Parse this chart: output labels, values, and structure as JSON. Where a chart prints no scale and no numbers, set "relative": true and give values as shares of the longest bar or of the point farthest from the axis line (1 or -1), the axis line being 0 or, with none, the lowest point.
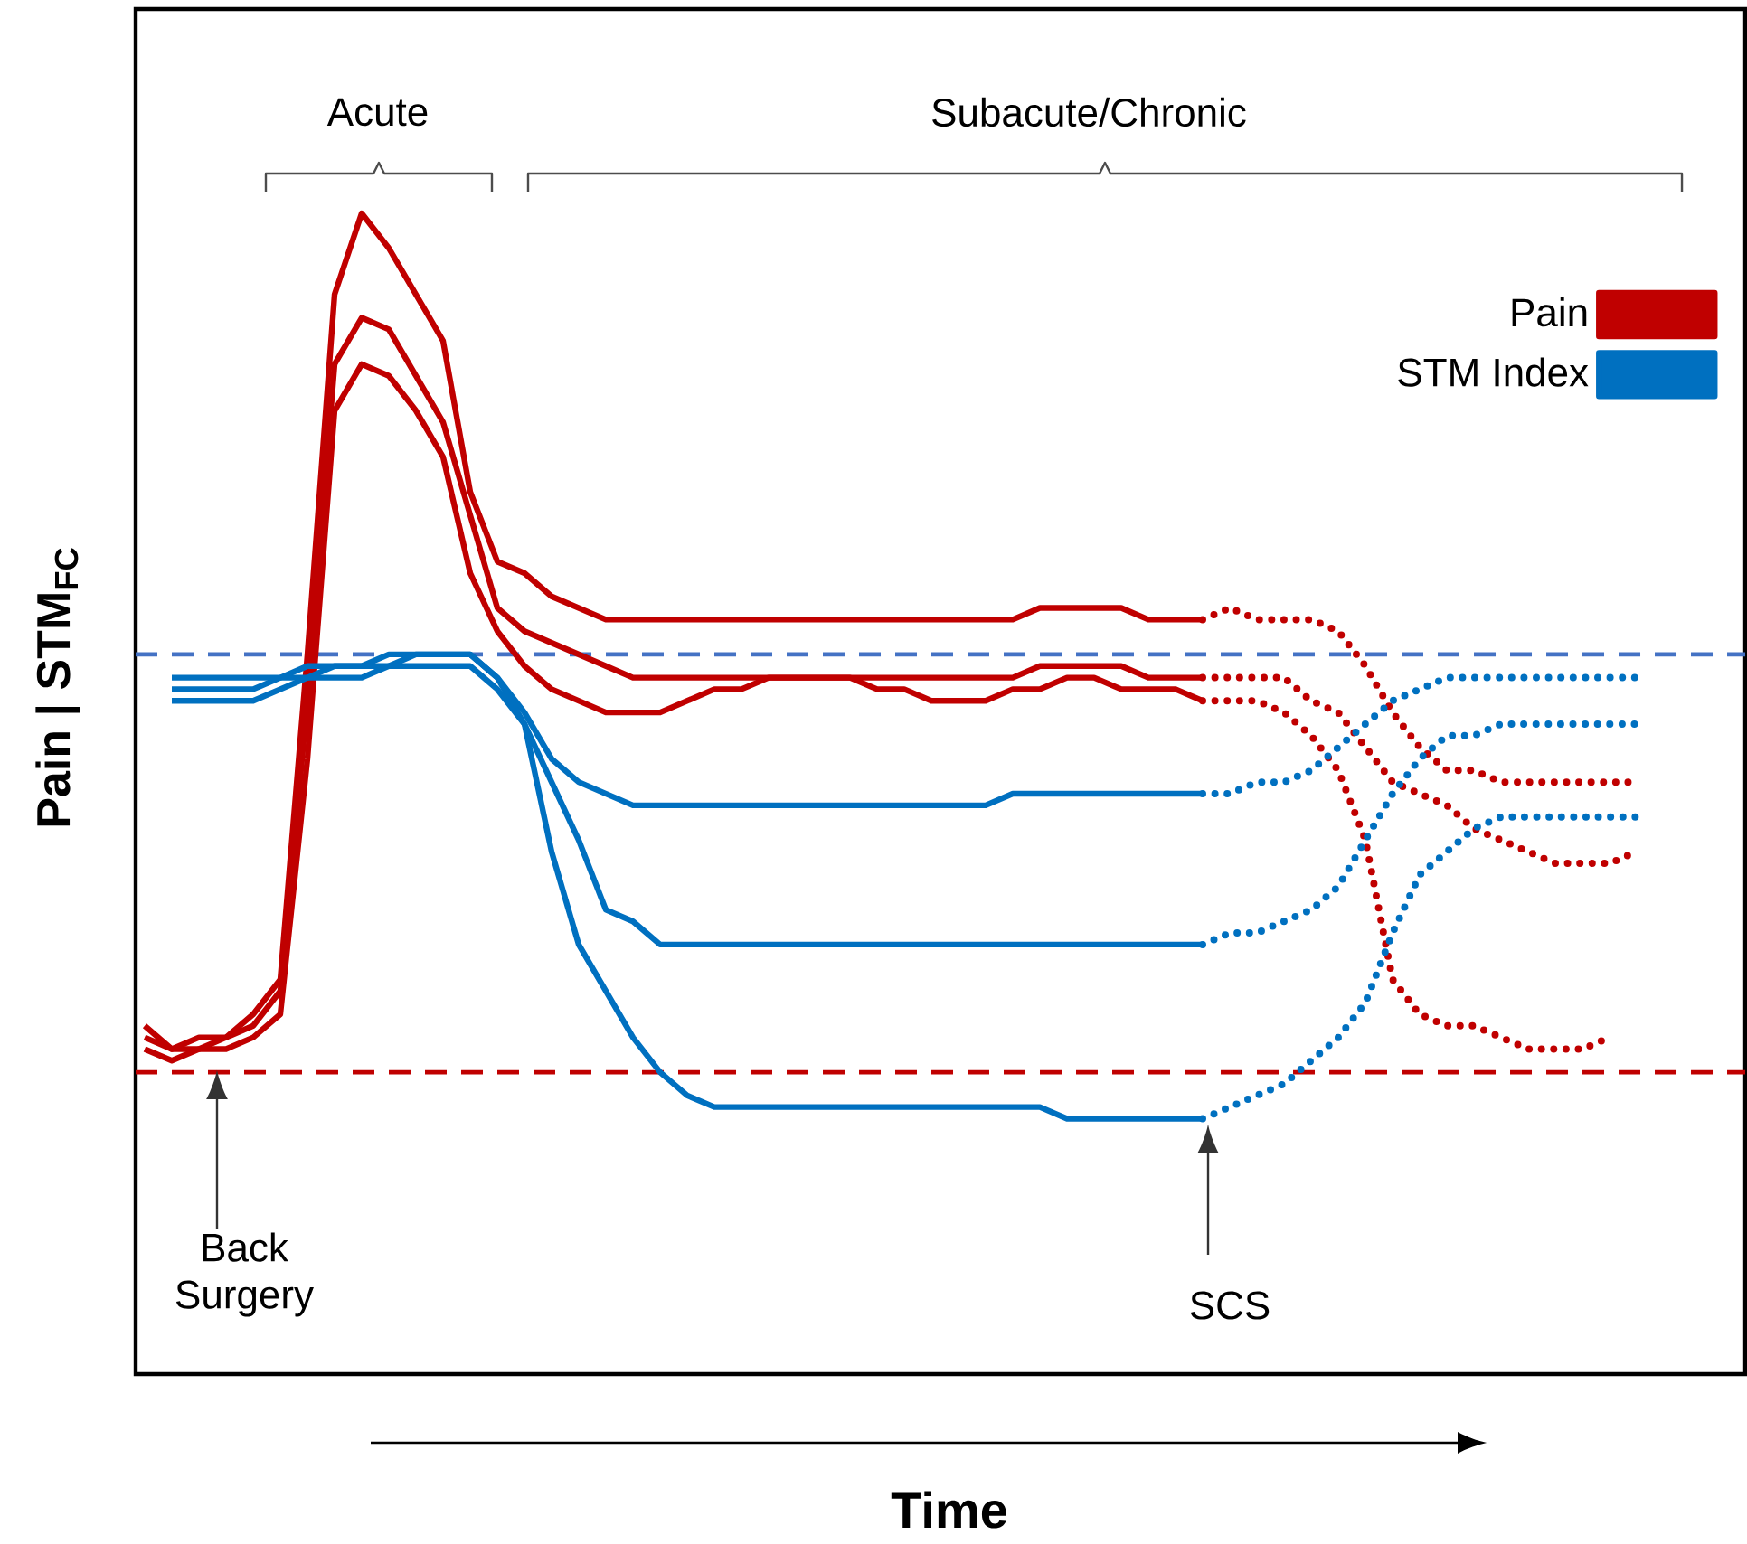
{
  "chart_data": {
    "type": "line",
    "relative": true,
    "legend": "top right",
    "xlabel": "Time",
    "ylabel": "Pain | STM$_{FC}$",
    "annotations": [
      "Acute",
      "Subacute/Chronic",
      "Back Surgery",
      "SCS"
    ],
    "categories": [
      null,
      null,
      null,
      null,
      null,
      null,
      null,
      null,
      null,
      null,
      null,
      null,
      null,
      null,
      null,
      null,
      null,
      null,
      null,
      null,
      null,
      null,
      null,
      null,
      null,
      null,
      null,
      null,
      null,
      null,
      null,
      null,
      null,
      null,
      null,
      null,
      null,
      null,
      null,
      null,
      null,
      null,
      null,
      null,
      null,
      null,
      null,
      null,
      null,
      null,
      null,
      null,
      null,
      null,
      null,
      null
    ],
    "ref_lines": [
      {
        "axis": "y",
        "value": 0.62,
        "color": "#4472c4",
        "line_style": "dashed"
      },
      {
        "axis": "y",
        "value": 0.26,
        "color": "#c00000",
        "line_style": "dashed"
      }
    ],
    "series": [
      {
        "name": "Pain",
        "color": "#c00000",
        "values": [
          0.3,
          0.28,
          0.29,
          0.29,
          0.31,
          0.34,
          0.62,
          0.93,
          1.0,
          0.97,
          0.93,
          0.89,
          0.76,
          0.7,
          0.69,
          0.67,
          0.66,
          0.65,
          0.65,
          0.65,
          0.65,
          0.65,
          0.65,
          0.65,
          0.65,
          0.65,
          0.65,
          0.65,
          0.65,
          0.65,
          0.65,
          0.65,
          0.65,
          0.66,
          0.66,
          0.66,
          0.66,
          0.65,
          0.65,
          0.65,
          null,
          null,
          null,
          null,
          null,
          null,
          null,
          null,
          null,
          null,
          null,
          null,
          null,
          null,
          null,
          null
        ]
      },
      {
        "color": "#c00000",
        "values": [
          0.29,
          0.28,
          0.28,
          0.29,
          0.3,
          0.33,
          0.58,
          0.87,
          0.91,
          0.9,
          0.86,
          0.82,
          0.74,
          0.66,
          0.64,
          0.63,
          0.62,
          0.61,
          0.6,
          0.6,
          0.6,
          0.6,
          0.6,
          0.6,
          0.6,
          0.6,
          0.6,
          0.6,
          0.6,
          0.6,
          0.6,
          0.6,
          0.6,
          0.61,
          0.61,
          0.61,
          0.61,
          0.6,
          0.6,
          0.6,
          null,
          null,
          null,
          null,
          null,
          null,
          null,
          null,
          null,
          null,
          null,
          null,
          null,
          null,
          null,
          null
        ]
      },
      {
        "color": "#c00000",
        "values": [
          0.28,
          0.27,
          0.28,
          0.28,
          0.29,
          0.31,
          0.53,
          0.83,
          0.87,
          0.86,
          0.83,
          0.79,
          0.69,
          0.64,
          0.61,
          0.59,
          0.58,
          0.57,
          0.57,
          0.57,
          0.58,
          0.59,
          0.59,
          0.6,
          0.6,
          0.6,
          0.6,
          0.59,
          0.59,
          0.58,
          0.58,
          0.58,
          0.59,
          0.59,
          0.6,
          0.6,
          0.59,
          0.59,
          0.59,
          0.58,
          null,
          null,
          null,
          null,
          null,
          null,
          null,
          null,
          null,
          null,
          null,
          null,
          null,
          null,
          null,
          null
        ]
      },
      {
        "color": "#c00000",
        "line_style": "dotted",
        "values": [
          null,
          null,
          null,
          null,
          null,
          null,
          null,
          null,
          null,
          null,
          null,
          null,
          null,
          null,
          null,
          null,
          null,
          null,
          null,
          null,
          null,
          null,
          null,
          null,
          null,
          null,
          null,
          null,
          null,
          null,
          null,
          null,
          null,
          null,
          null,
          null,
          null,
          null,
          null,
          0.65,
          0.66,
          0.65,
          0.65,
          0.65,
          0.64,
          0.61,
          0.57,
          0.54,
          0.52,
          0.52,
          0.51,
          0.51,
          0.51,
          0.51,
          0.51,
          0.51
        ]
      },
      {
        "color": "#c00000",
        "line_style": "dotted",
        "values": [
          null,
          null,
          null,
          null,
          null,
          null,
          null,
          null,
          null,
          null,
          null,
          null,
          null,
          null,
          null,
          null,
          null,
          null,
          null,
          null,
          null,
          null,
          null,
          null,
          null,
          null,
          null,
          null,
          null,
          null,
          null,
          null,
          null,
          null,
          null,
          null,
          null,
          null,
          null,
          0.6,
          0.6,
          0.6,
          0.6,
          0.58,
          0.57,
          0.54,
          0.51,
          0.5,
          0.49,
          0.47,
          0.46,
          0.45,
          0.44,
          0.44,
          0.44,
          0.45
        ]
      },
      {
        "color": "#c00000",
        "line_style": "dotted",
        "values": [
          null,
          null,
          null,
          null,
          null,
          null,
          null,
          null,
          null,
          null,
          null,
          null,
          null,
          null,
          null,
          null,
          null,
          null,
          null,
          null,
          null,
          null,
          null,
          null,
          null,
          null,
          null,
          null,
          null,
          null,
          null,
          null,
          null,
          null,
          null,
          null,
          null,
          null,
          null,
          0.58,
          0.58,
          0.58,
          0.57,
          0.55,
          0.52,
          0.46,
          0.34,
          0.31,
          0.3,
          0.3,
          0.29,
          0.28,
          0.28,
          0.28,
          0.29,
          null
        ]
      },
      {
        "name": "STM Index",
        "color": "#0070c0",
        "values": [
          null,
          0.6,
          0.6,
          0.6,
          0.6,
          0.6,
          0.61,
          0.61,
          0.61,
          0.62,
          0.62,
          0.62,
          0.62,
          0.6,
          0.57,
          0.53,
          0.51,
          0.5,
          0.49,
          0.49,
          0.49,
          0.49,
          0.49,
          0.49,
          0.49,
          0.49,
          0.49,
          0.49,
          0.49,
          0.49,
          0.49,
          0.49,
          0.5,
          0.5,
          0.5,
          0.5,
          0.5,
          0.5,
          0.5,
          0.5,
          null,
          null,
          null,
          null,
          null,
          null,
          null,
          null,
          null,
          null,
          null,
          null,
          null,
          null,
          null,
          null
        ]
      },
      {
        "color": "#0070c0",
        "values": [
          null,
          0.59,
          0.59,
          0.59,
          0.59,
          0.6,
          0.6,
          0.61,
          0.61,
          0.61,
          0.62,
          0.62,
          0.62,
          0.6,
          0.56,
          0.51,
          0.46,
          0.4,
          0.39,
          0.37,
          0.37,
          0.37,
          0.37,
          0.37,
          0.37,
          0.37,
          0.37,
          0.37,
          0.37,
          0.37,
          0.37,
          0.37,
          0.37,
          0.37,
          0.37,
          0.37,
          0.37,
          0.37,
          0.37,
          0.37,
          null,
          null,
          null,
          null,
          null,
          null,
          null,
          null,
          null,
          null,
          null,
          null,
          null,
          null,
          null,
          null
        ]
      },
      {
        "color": "#0070c0",
        "values": [
          null,
          0.58,
          0.58,
          0.58,
          0.58,
          0.59,
          0.6,
          0.6,
          0.6,
          0.61,
          0.61,
          0.61,
          0.61,
          0.59,
          0.56,
          0.45,
          0.37,
          0.33,
          0.29,
          0.26,
          0.24,
          0.23,
          0.23,
          0.23,
          0.23,
          0.23,
          0.23,
          0.23,
          0.23,
          0.23,
          0.23,
          0.23,
          0.23,
          0.23,
          0.22,
          0.22,
          0.22,
          0.22,
          0.22,
          0.22,
          null,
          null,
          null,
          null,
          null,
          null,
          null,
          null,
          null,
          null,
          null,
          null,
          null,
          null,
          null,
          null
        ]
      },
      {
        "color": "#0070c0",
        "line_style": "dotted",
        "values": [
          null,
          null,
          null,
          null,
          null,
          null,
          null,
          null,
          null,
          null,
          null,
          null,
          null,
          null,
          null,
          null,
          null,
          null,
          null,
          null,
          null,
          null,
          null,
          null,
          null,
          null,
          null,
          null,
          null,
          null,
          null,
          null,
          null,
          null,
          null,
          null,
          null,
          null,
          null,
          0.5,
          0.5,
          0.51,
          0.51,
          0.52,
          0.54,
          0.56,
          0.58,
          0.59,
          0.6,
          0.6,
          0.6,
          0.6,
          0.6,
          0.6,
          0.6,
          0.6
        ]
      },
      {
        "color": "#0070c0",
        "line_style": "dotted",
        "values": [
          null,
          null,
          null,
          null,
          null,
          null,
          null,
          null,
          null,
          null,
          null,
          null,
          null,
          null,
          null,
          null,
          null,
          null,
          null,
          null,
          null,
          null,
          null,
          null,
          null,
          null,
          null,
          null,
          null,
          null,
          null,
          null,
          null,
          null,
          null,
          null,
          null,
          null,
          null,
          0.37,
          0.38,
          0.38,
          0.39,
          0.4,
          0.42,
          0.46,
          0.5,
          0.53,
          0.55,
          0.55,
          0.56,
          0.56,
          0.56,
          0.56,
          0.56,
          0.56
        ]
      },
      {
        "color": "#0070c0",
        "line_style": "dotted",
        "values": [
          null,
          null,
          null,
          null,
          null,
          null,
          null,
          null,
          null,
          null,
          null,
          null,
          null,
          null,
          null,
          null,
          null,
          null,
          null,
          null,
          null,
          null,
          null,
          null,
          null,
          null,
          null,
          null,
          null,
          null,
          null,
          null,
          null,
          null,
          null,
          null,
          null,
          null,
          null,
          0.22,
          0.23,
          0.24,
          0.25,
          0.27,
          0.29,
          0.32,
          0.38,
          0.43,
          0.45,
          0.47,
          0.48,
          0.48,
          0.48,
          0.48,
          0.48,
          0.48
        ]
      }
    ]
  }
}
